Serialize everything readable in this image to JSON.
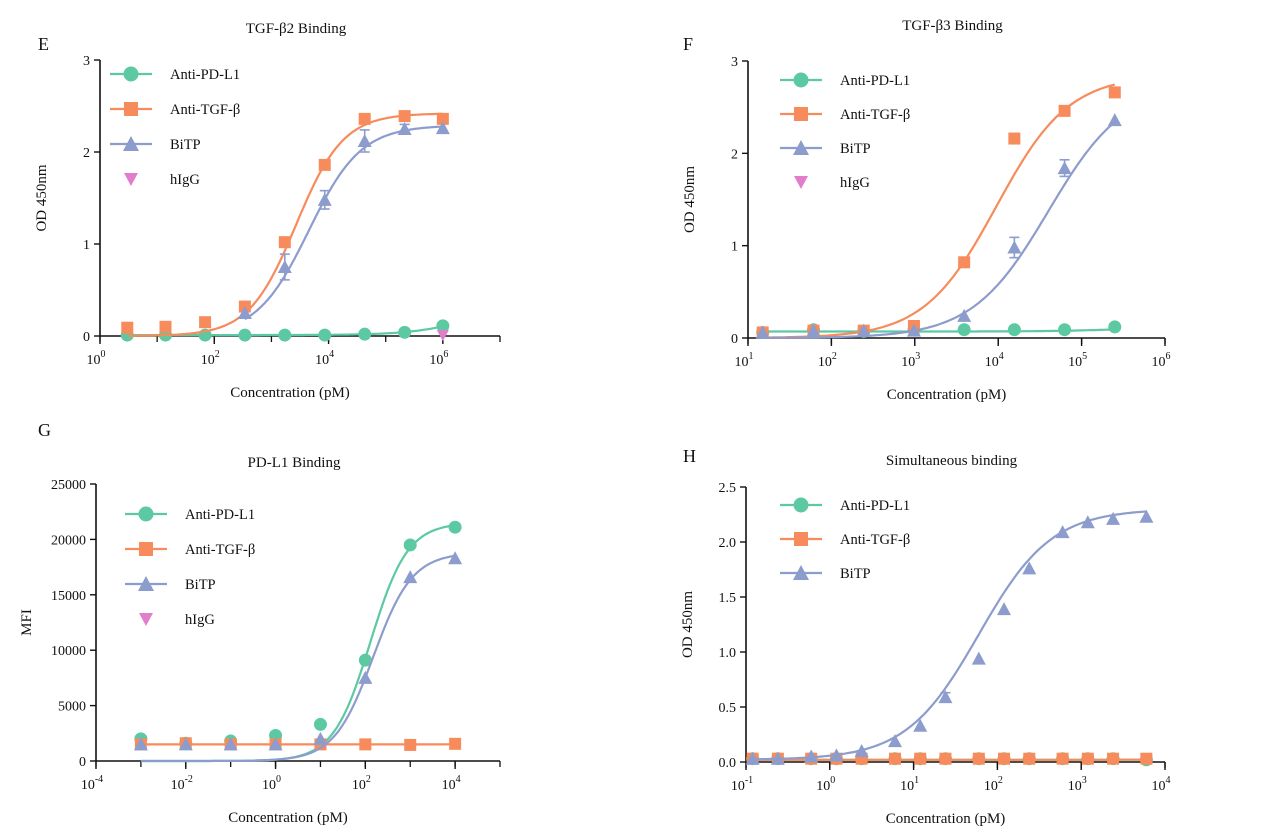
{
  "colors": {
    "anti_pd_l1": "#5cc9a2",
    "anti_tgf_b": "#f78b5c",
    "bitp": "#8c9ccd",
    "higg": "#e27dcb",
    "axis": "#111111"
  },
  "chart_data": [
    {
      "panel_letter": "E",
      "type": "scatter",
      "title": "TGF-β2 Binding",
      "xlabel": "Concentration (pM)",
      "ylabel": "OD 450nm",
      "xscale": "log",
      "xlim": [
        1,
        10000000
      ],
      "ylim": [
        0,
        3
      ],
      "x_ticks": [
        {
          "value": 1,
          "base": "10",
          "exp": "0"
        },
        {
          "value": 100,
          "base": "10",
          "exp": "2"
        },
        {
          "value": 10000,
          "base": "10",
          "exp": "4"
        },
        {
          "value": 1000000,
          "base": "10",
          "exp": "6"
        }
      ],
      "y_ticks": [
        {
          "value": 0,
          "label": "0"
        },
        {
          "value": 1,
          "label": "1"
        },
        {
          "value": 2,
          "label": "2"
        },
        {
          "value": 3,
          "label": "3"
        }
      ],
      "legend": "top-left",
      "series": [
        {
          "name": "Anti-PD-L1",
          "key": "anti_pd_l1",
          "marker": "circle",
          "x": [
            3,
            14,
            69,
            343,
            1715,
            8573,
            42867,
            214335,
            1000000
          ],
          "y": [
            0.01,
            0.01,
            0.01,
            0.01,
            0.01,
            0.01,
            0.02,
            0.04,
            0.11
          ],
          "curve": {
            "bottom": 0.01,
            "top": 0.45,
            "ec50": 5000000,
            "hill": 0.8
          }
        },
        {
          "name": "Anti-TGF-β",
          "key": "anti_tgf_b",
          "marker": "square",
          "x": [
            3,
            14,
            69,
            343,
            1715,
            8573,
            42867,
            214335,
            1000000
          ],
          "y": [
            0.09,
            0.1,
            0.15,
            0.32,
            1.02,
            1.86,
            2.36,
            2.39,
            2.36
          ],
          "curve": {
            "bottom": 0.0,
            "top": 2.42,
            "ec50": 2700,
            "hill": 1.05
          }
        },
        {
          "name": "BiTP",
          "key": "bitp",
          "marker": "triangle",
          "x": [
            343,
            1715,
            8573,
            42867,
            214335,
            1000000
          ],
          "y": [
            0.25,
            0.75,
            1.48,
            2.12,
            2.25,
            2.26
          ],
          "err": [
            0.0,
            0.14,
            0.1,
            0.12,
            0.05,
            0.0
          ],
          "curve": {
            "bottom": 0.0,
            "top": 2.29,
            "ec50": 4500,
            "hill": 0.95
          }
        },
        {
          "name": "hIgG",
          "key": "higg",
          "marker": "triangle-down",
          "x": [
            1000000
          ],
          "y": [
            0.01
          ]
        }
      ]
    },
    {
      "panel_letter": "F",
      "type": "scatter",
      "title": "TGF-β3 Binding",
      "xlabel": "Concentration (pM)",
      "ylabel": "OD 450nm",
      "xscale": "log",
      "xlim": [
        10,
        1000000
      ],
      "ylim": [
        0,
        3
      ],
      "x_ticks": [
        {
          "value": 10,
          "base": "10",
          "exp": "1"
        },
        {
          "value": 100,
          "base": "10",
          "exp": "2"
        },
        {
          "value": 1000,
          "base": "10",
          "exp": "3"
        },
        {
          "value": 10000,
          "base": "10",
          "exp": "4"
        },
        {
          "value": 100000,
          "base": "10",
          "exp": "5"
        },
        {
          "value": 1000000,
          "base": "10",
          "exp": "6"
        }
      ],
      "y_ticks": [
        {
          "value": 0,
          "label": "0"
        },
        {
          "value": 1,
          "label": "1"
        },
        {
          "value": 2,
          "label": "2"
        },
        {
          "value": 3,
          "label": "3"
        }
      ],
      "legend": "top-left",
      "series": [
        {
          "name": "Anti-PD-L1",
          "key": "anti_pd_l1",
          "marker": "circle",
          "x": [
            15,
            61,
            244,
            977,
            3906,
            15625,
            62500,
            250000
          ],
          "y": [
            0.06,
            0.09,
            0.07,
            0.09,
            0.09,
            0.09,
            0.09,
            0.12
          ],
          "curve": {
            "bottom": 0.07,
            "top": 0.12,
            "ec50": 300000,
            "hill": 1.0
          }
        },
        {
          "name": "Anti-TGF-β",
          "key": "anti_tgf_b",
          "marker": "square",
          "x": [
            15,
            61,
            244,
            977,
            3906,
            15625,
            62500,
            250000
          ],
          "y": [
            0.06,
            0.08,
            0.08,
            0.13,
            0.82,
            2.16,
            2.46,
            2.66
          ],
          "curve": {
            "bottom": 0.0,
            "top": 2.85,
            "ec50": 9500,
            "hill": 1.0
          }
        },
        {
          "name": "BiTP",
          "key": "bitp",
          "marker": "triangle",
          "x": [
            15,
            61,
            244,
            977,
            3906,
            15625,
            62500,
            250000
          ],
          "y": [
            0.06,
            0.08,
            0.08,
            0.08,
            0.24,
            0.98,
            1.84,
            2.36
          ],
          "err": [
            0.0,
            0.0,
            0.0,
            0.0,
            0.0,
            0.11,
            0.09,
            0.0
          ],
          "curve": {
            "bottom": 0.0,
            "top": 2.75,
            "ec50": 40000,
            "hill": 0.95
          }
        },
        {
          "name": "hIgG",
          "key": "higg",
          "marker": "triangle-down",
          "x": [],
          "y": []
        }
      ]
    },
    {
      "panel_letter": "G",
      "type": "scatter",
      "title": "PD-L1 Binding",
      "xlabel": "Concentration (pM)",
      "ylabel": "MFI",
      "xscale": "log",
      "xlim": [
        0.0001,
        100000
      ],
      "ylim": [
        0,
        25000
      ],
      "x_ticks": [
        {
          "value": 0.0001,
          "base": "10",
          "exp": "-4"
        },
        {
          "value": 0.01,
          "base": "10",
          "exp": "-2"
        },
        {
          "value": 1,
          "base": "10",
          "exp": "0"
        },
        {
          "value": 100,
          "base": "10",
          "exp": "2"
        },
        {
          "value": 10000,
          "base": "10",
          "exp": "4"
        }
      ],
      "y_ticks": [
        {
          "value": 0,
          "label": "0"
        },
        {
          "value": 5000,
          "label": "5000"
        },
        {
          "value": 10000,
          "label": "10000"
        },
        {
          "value": 15000,
          "label": "15000"
        },
        {
          "value": 20000,
          "label": "20000"
        },
        {
          "value": 25000,
          "label": "25000"
        }
      ],
      "legend": "top-left",
      "series": [
        {
          "name": "Anti-PD-L1",
          "key": "anti_pd_l1",
          "marker": "circle",
          "x": [
            0.001,
            0.01,
            0.1,
            1,
            10,
            100,
            1000,
            10000
          ],
          "y": [
            2000,
            1600,
            1800,
            2300,
            3300,
            9100,
            19500,
            21100
          ],
          "curve": {
            "bottom": 0,
            "top": 21500,
            "ec50": 130,
            "hill": 1.05
          }
        },
        {
          "name": "Anti-TGF-β",
          "key": "anti_tgf_b",
          "marker": "square",
          "x": [
            0.001,
            0.01,
            0.1,
            1,
            10,
            100,
            1000,
            10000
          ],
          "y": [
            1500,
            1600,
            1500,
            1500,
            1500,
            1500,
            1450,
            1550
          ],
          "curve": {
            "bottom": 1500,
            "top": 1550,
            "ec50": 100000,
            "hill": 1.0
          }
        },
        {
          "name": "BiTP",
          "key": "bitp",
          "marker": "triangle",
          "x": [
            0.001,
            0.01,
            0.1,
            1,
            10,
            100,
            1000,
            10000
          ],
          "y": [
            1500,
            1500,
            1500,
            1500,
            2000,
            7500,
            16600,
            18300
          ],
          "curve": {
            "bottom": 0,
            "top": 18800,
            "ec50": 150,
            "hill": 1.0
          }
        },
        {
          "name": "hIgG",
          "key": "higg",
          "marker": "triangle-down",
          "x": [],
          "y": []
        }
      ]
    },
    {
      "panel_letter": "H",
      "type": "scatter",
      "title": "Simultaneous binding",
      "xlabel": "Concentration (pM)",
      "ylabel": "OD 450nm",
      "xscale": "log",
      "xlim": [
        0.1,
        10000
      ],
      "ylim": [
        0,
        2.5
      ],
      "x_ticks": [
        {
          "value": 0.1,
          "base": "10",
          "exp": "-1"
        },
        {
          "value": 1,
          "base": "10",
          "exp": "0"
        },
        {
          "value": 10,
          "base": "10",
          "exp": "1"
        },
        {
          "value": 100,
          "base": "10",
          "exp": "2"
        },
        {
          "value": 1000,
          "base": "10",
          "exp": "3"
        },
        {
          "value": 10000,
          "base": "10",
          "exp": "4"
        }
      ],
      "y_ticks": [
        {
          "value": 0,
          "label": "0.0"
        },
        {
          "value": 0.5,
          "label": "0.5"
        },
        {
          "value": 1,
          "label": "1.0"
        },
        {
          "value": 1.5,
          "label": "1.5"
        },
        {
          "value": 2,
          "label": "2.0"
        },
        {
          "value": 2.5,
          "label": "2.5"
        }
      ],
      "legend": "top-left",
      "series": [
        {
          "name": "Anti-PD-L1",
          "key": "anti_pd_l1",
          "marker": "circle",
          "x": [
            0.12,
            0.24,
            0.6,
            1.2,
            2.4,
            6,
            12,
            24,
            60,
            120,
            240,
            600,
            1200,
            2400,
            6000
          ],
          "y": [
            0.03,
            0.03,
            0.03,
            0.03,
            0.03,
            0.03,
            0.03,
            0.03,
            0.03,
            0.03,
            0.03,
            0.03,
            0.03,
            0.03,
            0.02
          ],
          "curve": {
            "bottom": 0.02,
            "top": 0.04,
            "ec50": 100000,
            "hill": 1.0
          }
        },
        {
          "name": "Anti-TGF-β",
          "key": "anti_tgf_b",
          "marker": "square",
          "x": [
            0.12,
            0.24,
            0.6,
            1.2,
            2.4,
            6,
            12,
            24,
            60,
            120,
            240,
            600,
            1200,
            2400,
            6000
          ],
          "y": [
            0.03,
            0.03,
            0.03,
            0.03,
            0.03,
            0.03,
            0.03,
            0.03,
            0.03,
            0.03,
            0.03,
            0.03,
            0.03,
            0.03,
            0.03
          ],
          "curve": {
            "bottom": 0.02,
            "top": 0.04,
            "ec50": 100000,
            "hill": 1.0
          }
        },
        {
          "name": "BiTP",
          "key": "bitp",
          "marker": "triangle",
          "x": [
            0.12,
            0.24,
            0.6,
            1.2,
            2.4,
            6,
            12,
            24,
            60,
            120,
            240,
            600,
            1200,
            2400,
            6000
          ],
          "y": [
            0.03,
            0.03,
            0.05,
            0.06,
            0.1,
            0.19,
            0.33,
            0.59,
            0.94,
            1.39,
            1.76,
            2.09,
            2.18,
            2.21,
            2.23
          ],
          "err": [
            0,
            0,
            0,
            0,
            0,
            0,
            0,
            0.04,
            0,
            0,
            0,
            0,
            0,
            0,
            0
          ],
          "curve": {
            "bottom": 0.02,
            "top": 2.3,
            "ec50": 60,
            "hill": 1.0
          }
        }
      ]
    }
  ]
}
